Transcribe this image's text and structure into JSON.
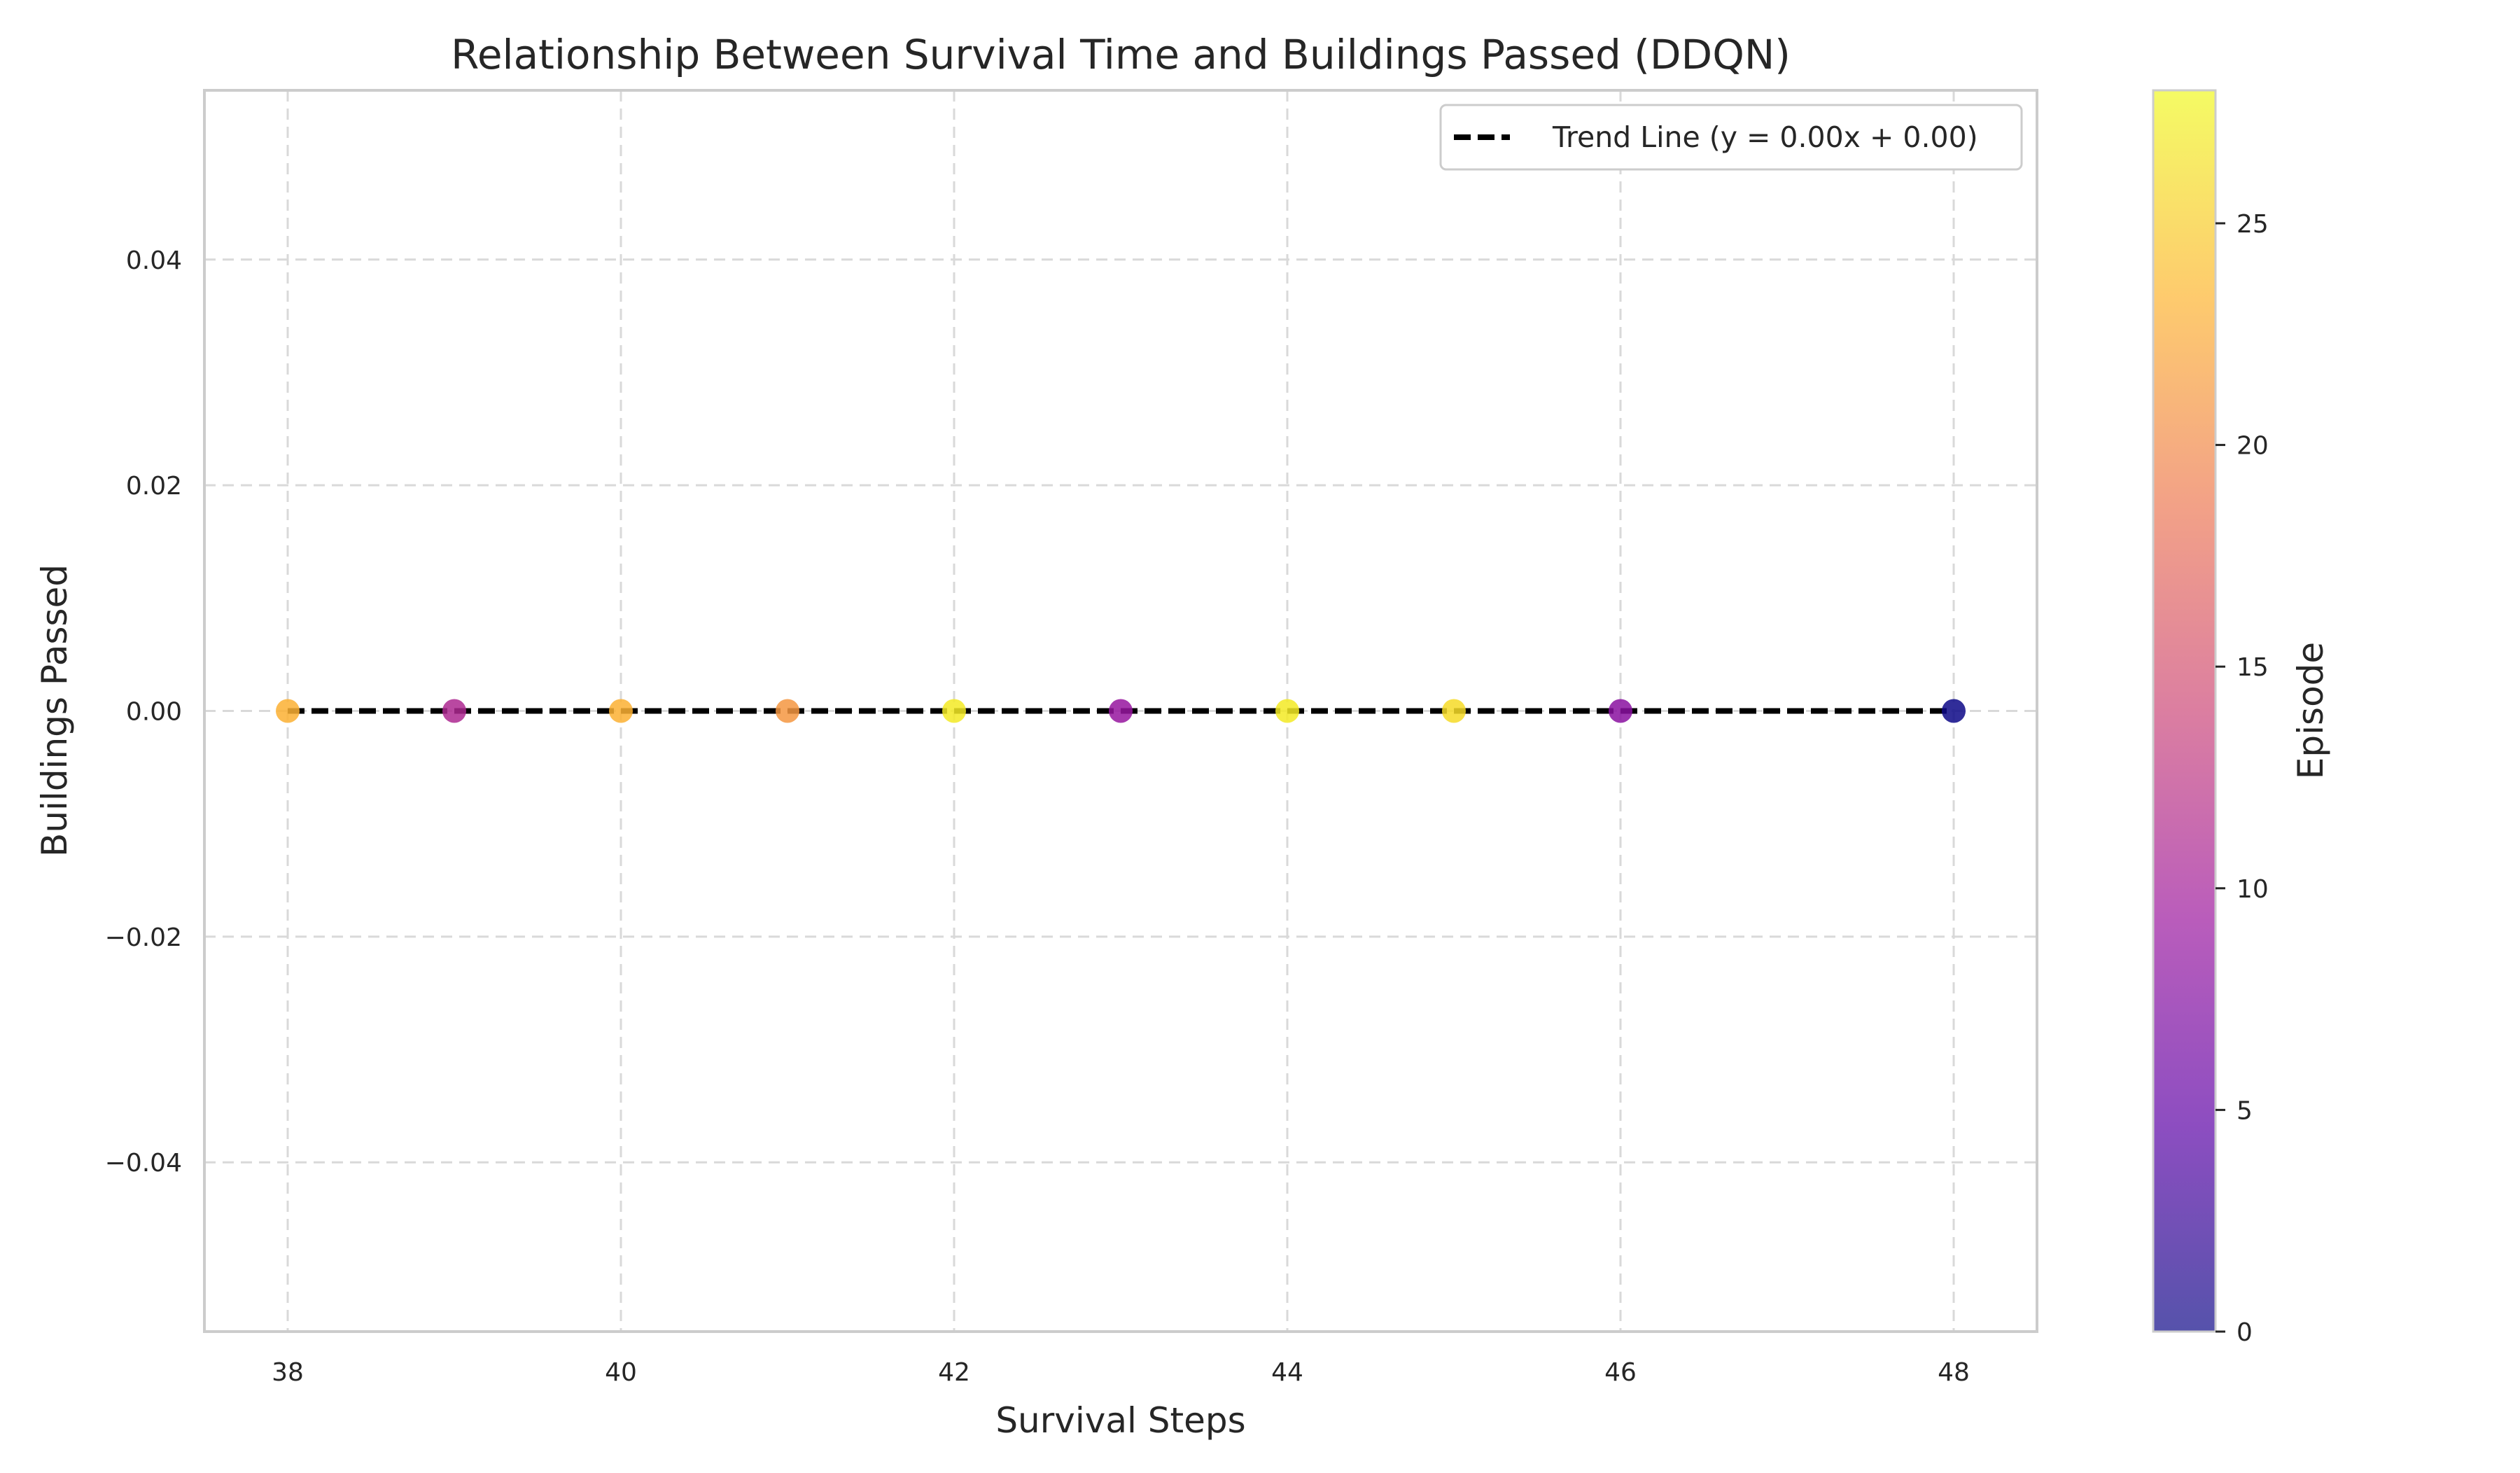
{
  "chart_data": {
    "type": "scatter",
    "title": "Relationship Between Survival Time and Buildings Passed (DDQN)",
    "xlabel": "Survival Steps",
    "ylabel": "Buildings Passed",
    "xlim": [
      37.5,
      48.5
    ],
    "ylim": [
      -0.055,
      0.055
    ],
    "xticks": [
      38,
      40,
      42,
      44,
      46,
      48
    ],
    "xtick_labels": [
      "38",
      "40",
      "42",
      "44",
      "46",
      "48"
    ],
    "yticks": [
      -0.04,
      -0.02,
      0.0,
      0.02,
      0.04
    ],
    "ytick_labels": [
      "−0.04",
      "−0.02",
      "0.00",
      "0.02",
      "0.04"
    ],
    "grid": true,
    "legend_position": "top-right",
    "points": [
      {
        "x": 38,
        "y": 0,
        "episode": 23
      },
      {
        "x": 39,
        "y": 0,
        "episode": 11
      },
      {
        "x": 40,
        "y": 0,
        "episode": 23
      },
      {
        "x": 41,
        "y": 0,
        "episode": 21
      },
      {
        "x": 42,
        "y": 0,
        "episode": 27
      },
      {
        "x": 43,
        "y": 0,
        "episode": 9
      },
      {
        "x": 44,
        "y": 0,
        "episode": 27
      },
      {
        "x": 45,
        "y": 0,
        "episode": 26
      },
      {
        "x": 46,
        "y": 0,
        "episode": 8
      },
      {
        "x": 48,
        "y": 0,
        "episode": 0
      }
    ],
    "trend_line": {
      "label": "Trend Line (y = 0.00x + 0.00)",
      "slope": 0.0,
      "intercept": 0.0,
      "x_range": [
        38,
        48
      ],
      "color": "#000000",
      "style": "dashed"
    },
    "colorbar": {
      "label": "Episode",
      "min": 0,
      "max": 28,
      "ticks": [
        0,
        5,
        10,
        15,
        20,
        25
      ],
      "tick_labels": [
        "0",
        "5",
        "10",
        "15",
        "20",
        "25"
      ],
      "colormap": "plasma",
      "colors": [
        "#0d0887",
        "#5c01a6",
        "#9c179e",
        "#cc4778",
        "#ed7953",
        "#fdb42f",
        "#f0f921"
      ]
    }
  }
}
